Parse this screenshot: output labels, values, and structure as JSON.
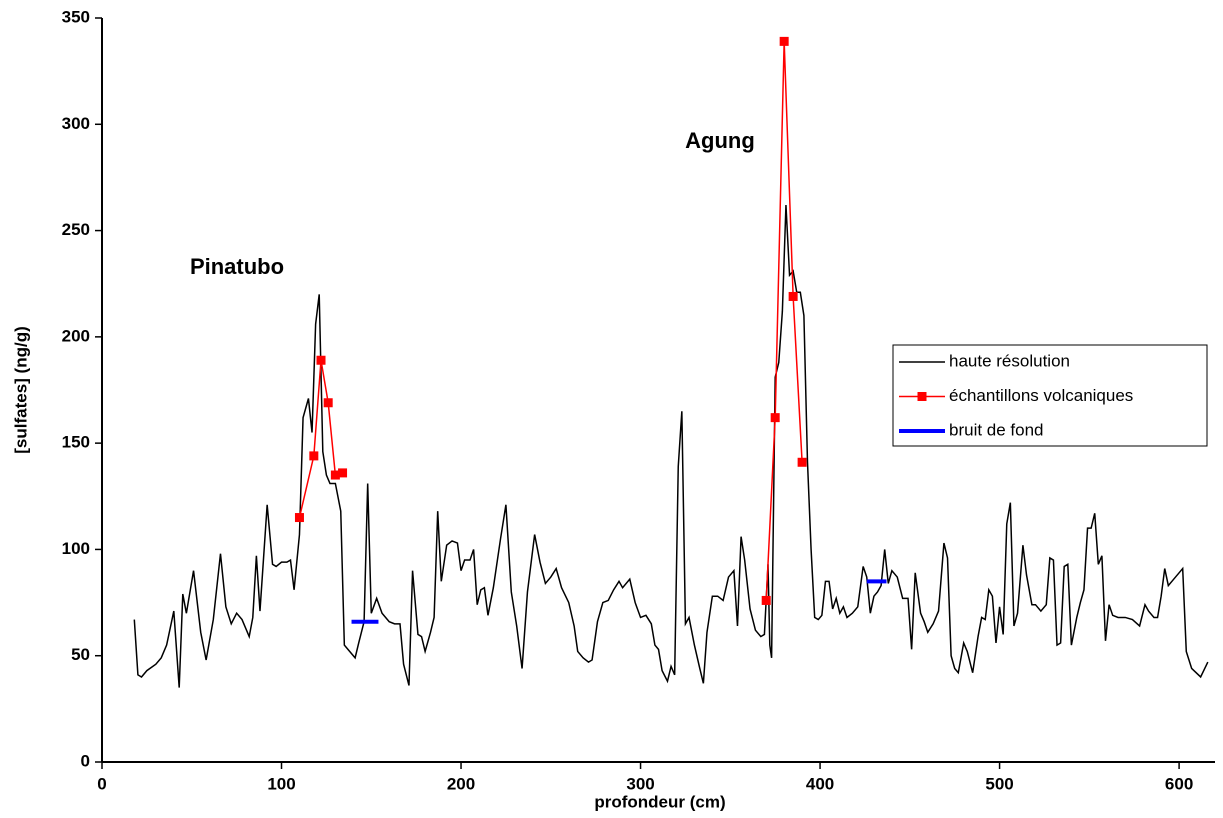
{
  "chart_data": {
    "type": "line",
    "x_label": "profondeur (cm)",
    "y_label": "[sulfates] (ng/g)",
    "annotations": [
      "Pinatubo",
      "Agung"
    ],
    "xlim": [
      0,
      620
    ],
    "ylim": [
      0,
      350
    ],
    "xticks": [
      0,
      100,
      200,
      300,
      400,
      500,
      600
    ],
    "yticks": [
      0,
      50,
      100,
      150,
      200,
      250,
      300,
      350
    ],
    "grid": false,
    "legend": "right",
    "series": [
      {
        "name": "haute résolution",
        "color": "#000000",
        "x": [
          18,
          20,
          22,
          25,
          30,
          33,
          36,
          40,
          43,
          45,
          47,
          51,
          55,
          58,
          62,
          66,
          69,
          72,
          75,
          78,
          82,
          84,
          86,
          88,
          90,
          92,
          95,
          97,
          100,
          103,
          105,
          107,
          110,
          112,
          115,
          117,
          119,
          121,
          123,
          125,
          127,
          130,
          133,
          135,
          138,
          141,
          143,
          146,
          148,
          150,
          153,
          156,
          160,
          163,
          166,
          168,
          171,
          173,
          176,
          178,
          180,
          183,
          185,
          187,
          189,
          192,
          195,
          198,
          200,
          202,
          205,
          207,
          209,
          211,
          213,
          215,
          218,
          222,
          225,
          228,
          231,
          234,
          237,
          241,
          244,
          247,
          250,
          253,
          256,
          260,
          263,
          265,
          268,
          271,
          273,
          276,
          279,
          282,
          285,
          288,
          290,
          294,
          297,
          300,
          303,
          306,
          308,
          310,
          312,
          315,
          317,
          319,
          321,
          323,
          325,
          327,
          330,
          333,
          335,
          337,
          340,
          343,
          346,
          349,
          352,
          354,
          356,
          358,
          361,
          364,
          367,
          369,
          371,
          372,
          373,
          375,
          377,
          379,
          381,
          383,
          385,
          387,
          389,
          391,
          393,
          395,
          397,
          399,
          401,
          403,
          405,
          407,
          409,
          411,
          413,
          415,
          418,
          421,
          424,
          426,
          428,
          430,
          432,
          434,
          436,
          438,
          440,
          443,
          446,
          449,
          451,
          453,
          456,
          458,
          460,
          463,
          466,
          469,
          471,
          473,
          475,
          477,
          480,
          482,
          485,
          488,
          490,
          492,
          494,
          496,
          498,
          500,
          502,
          504,
          506,
          508,
          510,
          513,
          515,
          518,
          520,
          523,
          526,
          528,
          530,
          532,
          534,
          536,
          538,
          540,
          543,
          545,
          547,
          549,
          551,
          553,
          555,
          557,
          559,
          561,
          563,
          566,
          570,
          574,
          578,
          581,
          583,
          586,
          588,
          590,
          592,
          594,
          597,
          600,
          602,
          604,
          607,
          612,
          616
        ],
        "values": [
          67,
          41,
          40,
          43,
          46,
          49,
          55,
          71,
          35,
          79,
          70,
          90,
          61,
          48,
          67,
          98,
          73,
          65,
          70,
          67,
          59,
          68,
          97,
          71,
          96,
          121,
          93,
          92,
          94,
          94,
          95,
          81,
          107,
          162,
          171,
          155,
          206,
          220,
          146,
          135,
          131,
          131,
          118,
          55,
          52,
          49,
          56,
          66,
          131,
          70,
          77,
          70,
          66,
          65,
          65,
          46,
          36,
          90,
          60,
          59,
          52,
          61,
          68,
          118,
          85,
          102,
          104,
          103,
          90,
          95,
          95,
          100,
          74,
          81,
          82,
          69,
          82,
          105,
          121,
          80,
          64,
          44,
          80,
          107,
          94,
          84,
          87,
          91,
          82,
          75,
          64,
          52,
          49,
          47,
          48,
          66,
          75,
          76,
          81,
          85,
          82,
          86,
          75,
          68,
          69,
          65,
          55,
          53,
          43,
          38,
          45,
          41,
          139,
          165,
          65,
          68,
          55,
          44,
          37,
          61,
          78,
          78,
          76,
          87,
          90,
          64,
          106,
          95,
          72,
          62,
          59,
          60,
          93,
          55,
          49,
          181,
          188,
          212,
          262,
          229,
          231,
          221,
          221,
          210,
          141,
          100,
          68,
          67,
          69,
          85,
          85,
          72,
          77,
          70,
          73,
          68,
          70,
          73,
          92,
          87,
          70,
          78,
          80,
          83,
          100,
          84,
          90,
          87,
          77,
          77,
          53,
          89,
          70,
          66,
          61,
          65,
          71,
          103,
          96,
          50,
          44,
          42,
          56,
          52,
          42,
          59,
          68,
          67,
          81,
          78,
          56,
          73,
          60,
          112,
          122,
          64,
          70,
          102,
          88,
          74,
          74,
          71,
          74,
          96,
          95,
          55,
          56,
          92,
          93,
          55,
          68,
          75,
          81,
          110,
          110,
          117,
          93,
          97,
          57,
          74,
          69,
          68,
          68,
          67,
          64,
          74,
          71,
          68,
          68,
          78,
          91,
          83,
          86,
          89,
          91,
          52,
          44,
          40,
          47
        ]
      },
      {
        "name": "échantillons volcaniques",
        "color": "#ff0000",
        "x": [
          110,
          118,
          122,
          126,
          130,
          134,
          null,
          370,
          375,
          380,
          385,
          390
        ],
        "values": [
          115,
          144,
          189,
          169,
          135,
          136,
          null,
          76,
          162,
          339,
          219,
          141
        ]
      },
      {
        "name": "bruit de fond",
        "color": "#0000ff",
        "x": [
          139,
          154,
          null,
          426,
          437
        ],
        "values": [
          66,
          66,
          null,
          85,
          85
        ]
      }
    ]
  }
}
